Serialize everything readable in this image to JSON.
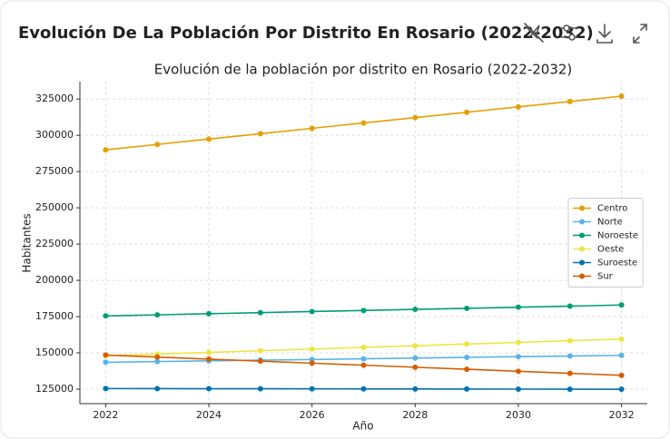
{
  "header": {
    "title": "Evolución De La Población Por Distrito En Rosario (2022-2032)"
  },
  "chart_data": {
    "type": "line",
    "title": "Evolución de la población por distrito en Rosario (2022-2032)",
    "x_label": "Año",
    "y_label": "Habitantes",
    "x": [
      2022,
      2023,
      2024,
      2025,
      2026,
      2027,
      2028,
      2029,
      2030,
      2031,
      2032
    ],
    "series": [
      {
        "name": "Centro",
        "color": "#e69f00",
        "values": [
          290000,
          293700,
          297400,
          301100,
          304800,
          308500,
          312200,
          315900,
          319600,
          323300,
          327000
        ]
      },
      {
        "name": "Norte",
        "color": "#56b4e9",
        "values": [
          143500,
          144000,
          144500,
          145000,
          145400,
          145900,
          146400,
          146900,
          147400,
          147800,
          148300
        ]
      },
      {
        "name": "Noroeste",
        "color": "#009e73",
        "values": [
          175500,
          176200,
          177000,
          177700,
          178500,
          179200,
          180000,
          180700,
          181500,
          182200,
          183000
        ]
      },
      {
        "name": "Oeste",
        "color": "#f0e442",
        "values": [
          148000,
          149200,
          150300,
          151500,
          152600,
          153800,
          154900,
          156100,
          157200,
          158400,
          159500
        ]
      },
      {
        "name": "Suroeste",
        "color": "#0072b2",
        "values": [
          125400,
          125350,
          125300,
          125250,
          125200,
          125150,
          125100,
          125050,
          125000,
          124950,
          124900
        ]
      },
      {
        "name": "Sur",
        "color": "#d55e00",
        "values": [
          148500,
          147100,
          145700,
          144300,
          142900,
          141500,
          140100,
          138700,
          137300,
          135900,
          134500
        ]
      }
    ],
    "xlim": [
      2021.5,
      2032.5
    ],
    "xticks": [
      2022,
      2024,
      2026,
      2028,
      2030,
      2032
    ],
    "ylim": [
      115000,
      337000
    ],
    "yticks": [
      125000,
      150000,
      175000,
      200000,
      225000,
      250000,
      275000,
      300000,
      325000
    ],
    "grid": true,
    "legend": "center right"
  }
}
